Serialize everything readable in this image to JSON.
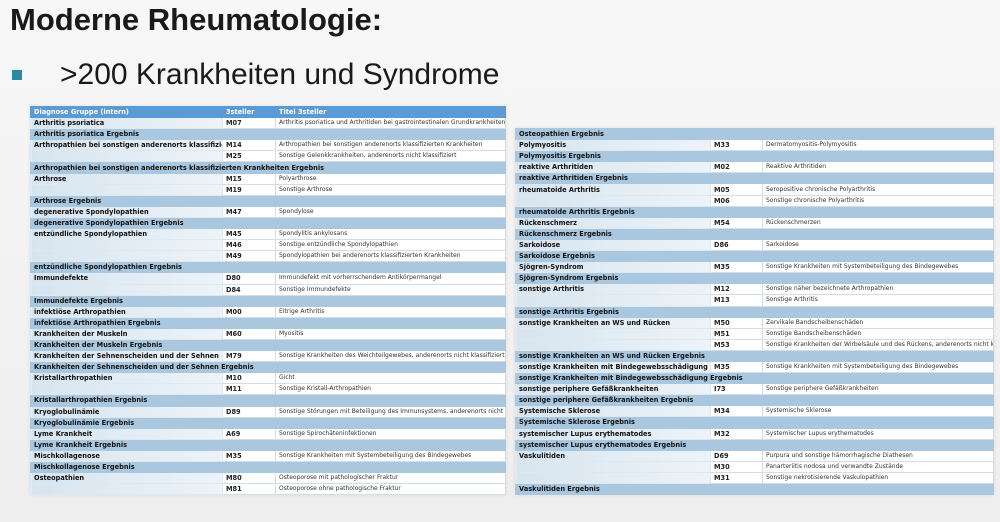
{
  "slide": {
    "title": "Moderne Rheumatologie:",
    "bullet": ">200 Krankheiten und Syndrome"
  },
  "colors": {
    "header": "#5b9bd5",
    "subtotal_row": "#a9c8df",
    "bullet": "#2a8a9e"
  },
  "left_table": {
    "headers": [
      "Diagnose Gruppe (intern)",
      "3steller",
      "Titel 3steller"
    ],
    "rows": [
      [
        "Arthritis psoriatica",
        "M07",
        "Arthritis psoriatica und Arthritiden bei gastrointestinalen Grundkrankheiten"
      ],
      [
        "Arthritis psoriatica Ergebnis"
      ],
      [
        "Arthropathien bei sonstigen anderenorts klassifizierten Krankheiten",
        "M14",
        "Arthropathien bei sonstigen anderenorts klassifizierten Krankheiten"
      ],
      [
        "",
        "M25",
        "Sonstige Gelenkkrankheiten, anderenorts nicht klassifiziert"
      ],
      [
        "Arthropathien bei sonstigen anderenorts klassifizierten Krankheiten Ergebnis"
      ],
      [
        "Arthrose",
        "M15",
        "Polyarthrose"
      ],
      [
        "",
        "M19",
        "Sonstige Arthrose"
      ],
      [
        "Arthrose Ergebnis"
      ],
      [
        "degenerative Spondylopathien",
        "M47",
        "Spondylose"
      ],
      [
        "degenerative Spondylopathien Ergebnis"
      ],
      [
        "entzündliche Spondylopathien",
        "M45",
        "Spondylitis ankylosans"
      ],
      [
        "",
        "M46",
        "Sonstige entzündliche Spondylopathien"
      ],
      [
        "",
        "M49",
        "Spondylopathien bei anderenorts klassifizierten Krankheiten"
      ],
      [
        "entzündliche Spondylopathien Ergebnis"
      ],
      [
        "Immundefekte",
        "D80",
        "Immundefekt mit vorherrschendem Antikörpermangel"
      ],
      [
        "",
        "D84",
        "Sonstige Immundefekte"
      ],
      [
        "Immundefekte Ergebnis"
      ],
      [
        "infektiöse Arthropathien",
        "M00",
        "Eitrige Arthritis"
      ],
      [
        "infektiöse Arthropathien Ergebnis"
      ],
      [
        "Krankheiten der Muskeln",
        "M60",
        "Myositis"
      ],
      [
        "Krankheiten der Muskeln Ergebnis"
      ],
      [
        "Krankheiten der Sehnenscheiden und der Sehnen",
        "M79",
        "Sonstige Krankheiten des Weichteilgewebes, anderenorts nicht klassifiziert"
      ],
      [
        "Krankheiten der Sehnenscheiden und der Sehnen Ergebnis"
      ],
      [
        "Kristallarthropathien",
        "M10",
        "Gicht"
      ],
      [
        "",
        "M11",
        "Sonstige Kristall-Arthropathien"
      ],
      [
        "Kristallarthropathien Ergebnis"
      ],
      [
        "Kryoglobulinämie",
        "D89",
        "Sonstige Störungen mit Beteiligung des Immunsystems, anderenorts nicht klassifiziert"
      ],
      [
        "Kryoglobulinämie Ergebnis"
      ],
      [
        "Lyme Krankheit",
        "A69",
        "Sonstige Spirochäteninfektionen"
      ],
      [
        "Lyme Krankheit Ergebnis"
      ],
      [
        "Mischkollagenose",
        "M35",
        "Sonstige Krankheiten mit Systembeteiligung des Bindegewebes"
      ],
      [
        "Mischkollagenose Ergebnis"
      ],
      [
        "Osteopathien",
        "M80",
        "Osteoporose mit pathologischer Fraktur"
      ],
      [
        "",
        "M81",
        "Osteoporose ohne pathologische Fraktur"
      ]
    ]
  },
  "right_table": {
    "rows": [
      [
        "Osteopathien Ergebnis"
      ],
      [
        "Polymyositis",
        "M33",
        "Dermatomyositis-Polymyositis"
      ],
      [
        "Polymyositis Ergebnis"
      ],
      [
        "reaktive Arthritiden",
        "M02",
        "Reaktive Arthritiden"
      ],
      [
        "reaktive Arthritiden Ergebnis"
      ],
      [
        "rheumatoide Arthritis",
        "M05",
        "Seropositive chronische Polyarthritis"
      ],
      [
        "",
        "M06",
        "Sonstige chronische Polyarthritis"
      ],
      [
        "rheumatoide Arthritis Ergebnis"
      ],
      [
        "Rückenschmerz",
        "M54",
        "Rückenschmerzen"
      ],
      [
        "Rückenschmerz Ergebnis"
      ],
      [
        "Sarkoidose",
        "D86",
        "Sarkoidose"
      ],
      [
        "Sarkoidose Ergebnis"
      ],
      [
        "Sjögren-Syndrom",
        "M35",
        "Sonstige Krankheiten mit Systembeteiligung des Bindegewebes"
      ],
      [
        "Sjögren-Syndrom Ergebnis"
      ],
      [
        "sonstige Arthritis",
        "M12",
        "Sonstige näher bezeichnete Arthropathien"
      ],
      [
        "",
        "M13",
        "Sonstige Arthritis"
      ],
      [
        "sonstige Arthritis Ergebnis"
      ],
      [
        "sonstige Krankheiten an WS und Rücken",
        "M50",
        "Zervikale Bandscheibenschäden"
      ],
      [
        "",
        "M51",
        "Sonstige Bandscheibenschäden"
      ],
      [
        "",
        "M53",
        "Sonstige Krankheiten der Wirbelsäule und des Rückens, anderenorts nicht klassifiziert"
      ],
      [
        "sonstige Krankheiten an WS und Rücken Ergebnis"
      ],
      [
        "sonstige Krankheiten mit Bindegewebsschädigung",
        "M35",
        "Sonstige Krankheiten mit Systembeteiligung des Bindegewebes"
      ],
      [
        "sonstige Krankheiten mit Bindegewebsschädigung Ergebnis"
      ],
      [
        "sonstige periphere Gefäßkrankheiten",
        "I73",
        "Sonstige periphere Gefäßkrankheiten"
      ],
      [
        "sonstige periphere Gefäßkrankheiten Ergebnis"
      ],
      [
        "Systemische Sklerose",
        "M34",
        "Systemische Sklerose"
      ],
      [
        "Systemische Sklerose Ergebnis"
      ],
      [
        "systemischer Lupus erythematodes",
        "M32",
        "Systemischer Lupus erythematodes"
      ],
      [
        "systemischer Lupus erythematodes Ergebnis"
      ],
      [
        "Vaskulitiden",
        "D69",
        "Purpura und sonstige hämorrhagische Diathesen"
      ],
      [
        "",
        "M30",
        "Panarteriitis nodosa und verwandte Zustände"
      ],
      [
        "",
        "M31",
        "Sonstige nekrotisierende Vaskulopathien"
      ],
      [
        "Vaskulitiden Ergebnis"
      ]
    ]
  }
}
